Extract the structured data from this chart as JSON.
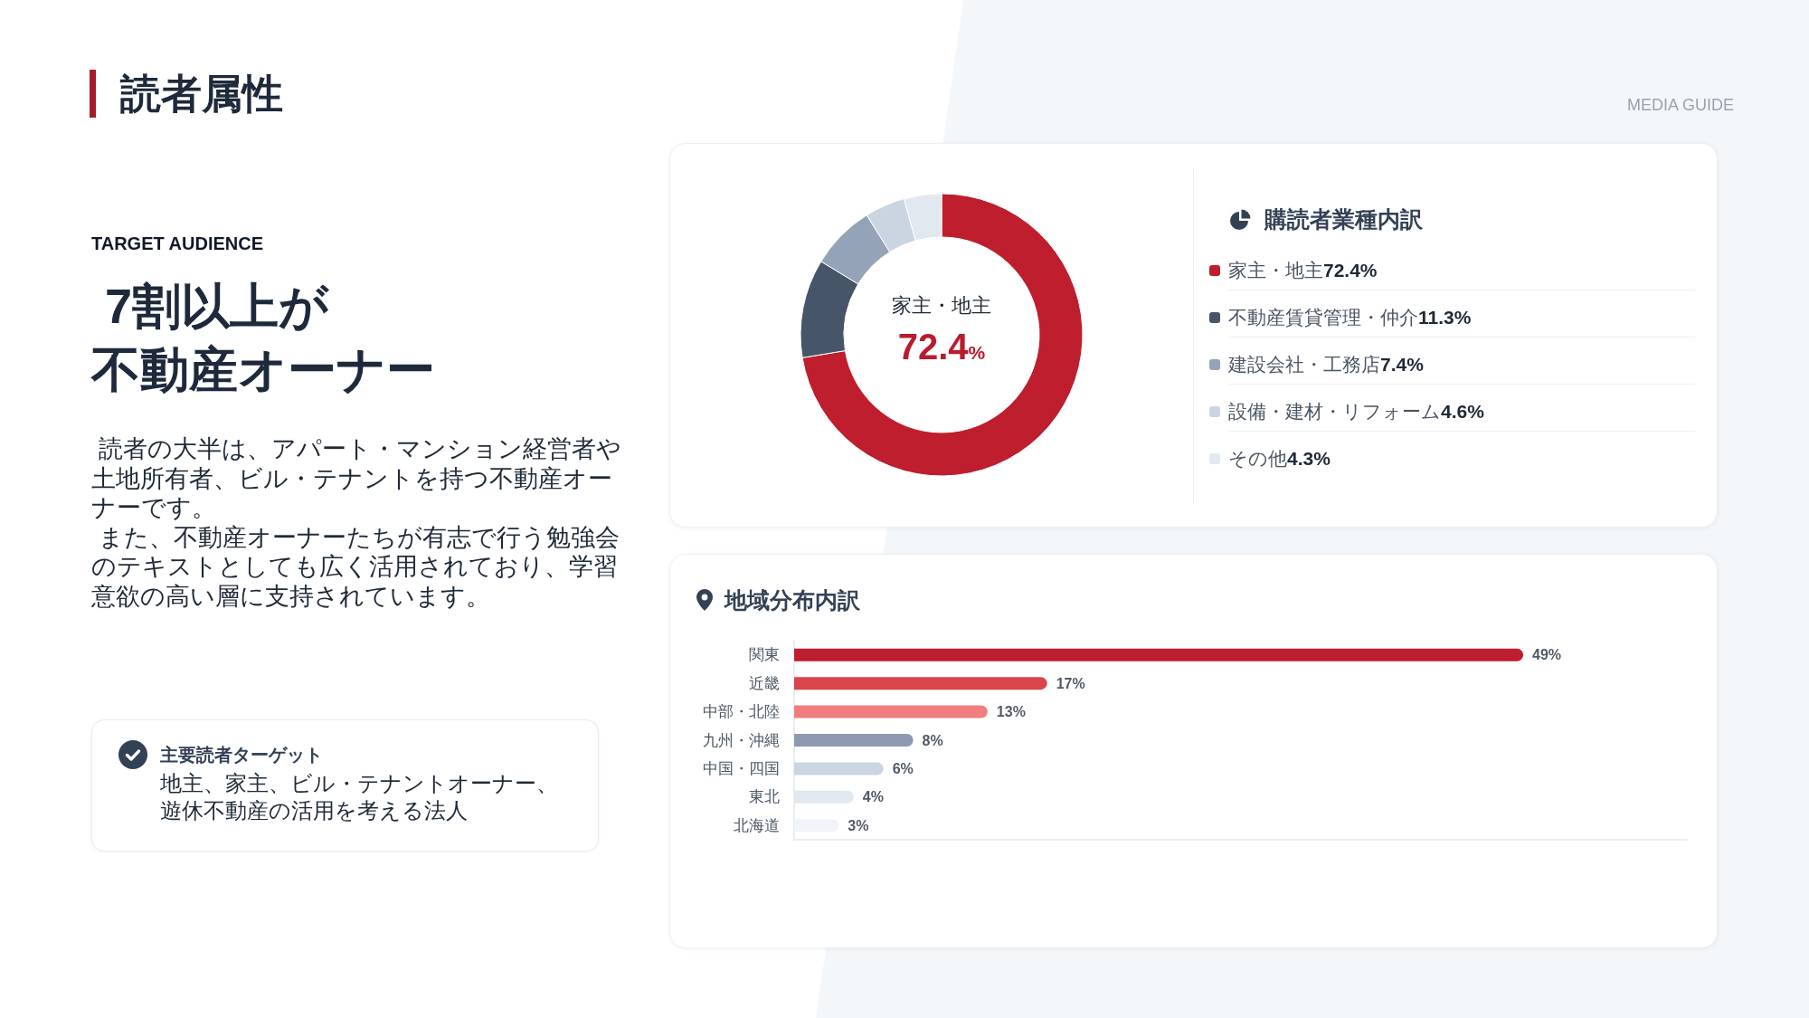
{
  "chart_data": [
    {
      "type": "other",
      "title": "読者属性",
      "subtitle": "TARGET AUDIENCE",
      "annotations": [
        " 7割以上が",
        "不動産オーナー",
        " 読者の大半は、アパート・マンション経営者や土地所有者、ビル・テナントを持つ不動産オーナーです。",
        " また、不動産オーナーたちが有志で行う勉強会のテキストとしても広く活用されており、学習意欲の高い層に支持されています。",
        "主要読者ターゲット",
        "地主、家主、ビル・テナントオーナー、遊休不動産の活用を考える法人",
        "MEDIA GUIDE"
      ]
    },
    {
      "type": "donut",
      "title": "購読者業種内訳",
      "categories": [
        "家主・地主",
        "不動産賃貸管理・仲介",
        "建設会社・工務店",
        "設備・建材・リフォーム",
        "その他"
      ],
      "values": [
        72.4,
        11.3,
        7.4,
        4.6,
        4.3
      ],
      "colors": [
        "#be1e2d",
        "#475569",
        "#94a3b8",
        "#cbd5e1",
        "#e2e8f0"
      ],
      "value_labels": [
        "72.4%",
        "11.3%",
        "7.4%",
        "4.6%",
        "4.3%"
      ],
      "legend": "right",
      "annotations": [
        "家主・地主",
        "72.4%"
      ]
    },
    {
      "type": "bar",
      "orientation": "horizontal",
      "title": "地域分布内訳",
      "categories": [
        "関東",
        "近畿",
        "中部・北陸",
        "九州・沖縄",
        "中国・四国",
        "東北",
        "北海道"
      ],
      "values": [
        49,
        17,
        13,
        8,
        6,
        4,
        3
      ],
      "colors": [
        "#be1e2d",
        "#d9454a",
        "#f07e7e",
        "#8d9ab0",
        "#cbd5e1",
        "#e2e8f0",
        "#f1f5f9"
      ],
      "value_labels": [
        "49%",
        "17%",
        "13%",
        "8%",
        "6%",
        "4%",
        "3%"
      ],
      "xlim": [
        0,
        60
      ],
      "tick_labels": "y"
    }
  ]
}
